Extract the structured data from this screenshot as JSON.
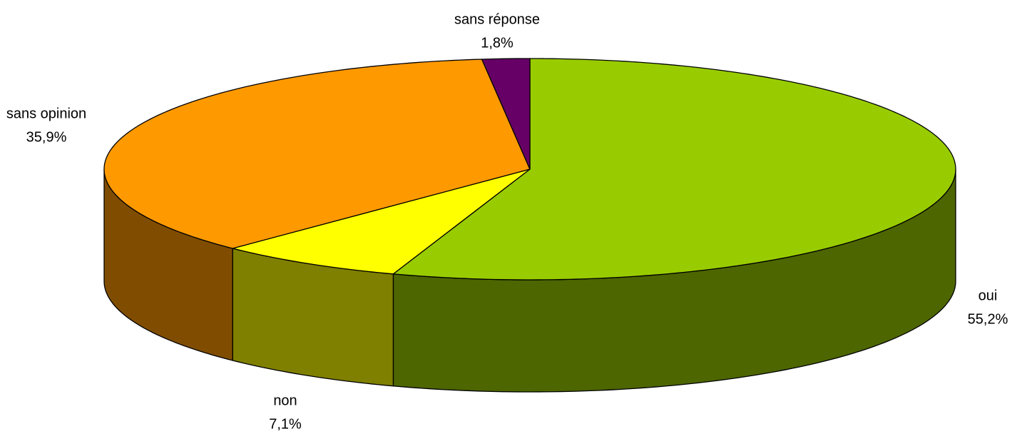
{
  "chart_data": {
    "type": "pie3d",
    "categories": [
      "oui",
      "non",
      "sans opinion",
      "sans réponse"
    ],
    "values": [
      55.2,
      7.1,
      35.9,
      1.8
    ],
    "value_labels": [
      "55,2%",
      "7,1%",
      "35,9%",
      "1,8%"
    ],
    "colors": [
      "#99cc00",
      "#ffff00",
      "#ff9900",
      "#660066"
    ],
    "side_colors": [
      "#4d6600",
      "#808000",
      "#804d00",
      "#330033"
    ]
  }
}
